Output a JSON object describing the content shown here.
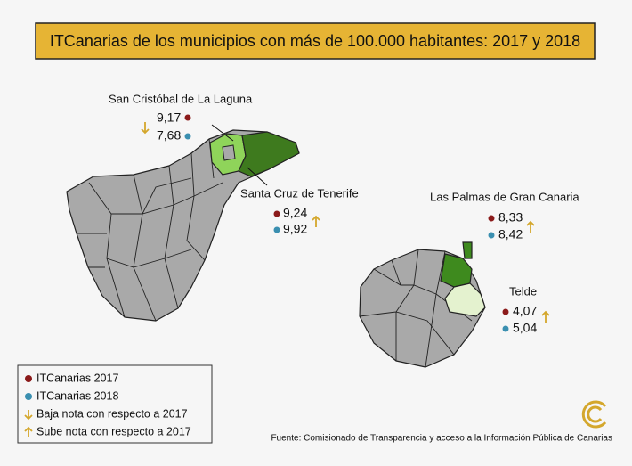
{
  "title": "ITCanarias de los municipios con más de 100.000 habitantes: 2017 y 2018",
  "municipalities": [
    {
      "name": "San Cristóbal de La Laguna",
      "itcanarias_2017": "9,17",
      "itcanarias_2018": "7,68"
    },
    {
      "name": "Santa Cruz de Tenerife",
      "itcanarias_2017": "9,24",
      "itcanarias_2018": "9,92"
    },
    {
      "name": "Las Palmas de Gran Canaria",
      "itcanarias_2017": "8,33",
      "itcanarias_2018": "8,42"
    },
    {
      "name": "Telde",
      "itcanarias_2017": "4,07",
      "itcanarias_2018": "5,04"
    }
  ],
  "legend": [
    "ITCanarias 2017",
    "ITCanarias 2018",
    "Baja nota con respecto a 2017",
    "Sube nota con respecto a 2017"
  ],
  "source": "Fuente: Comisionado de Transparencia y acceso a la Información Pública de Canarias"
}
